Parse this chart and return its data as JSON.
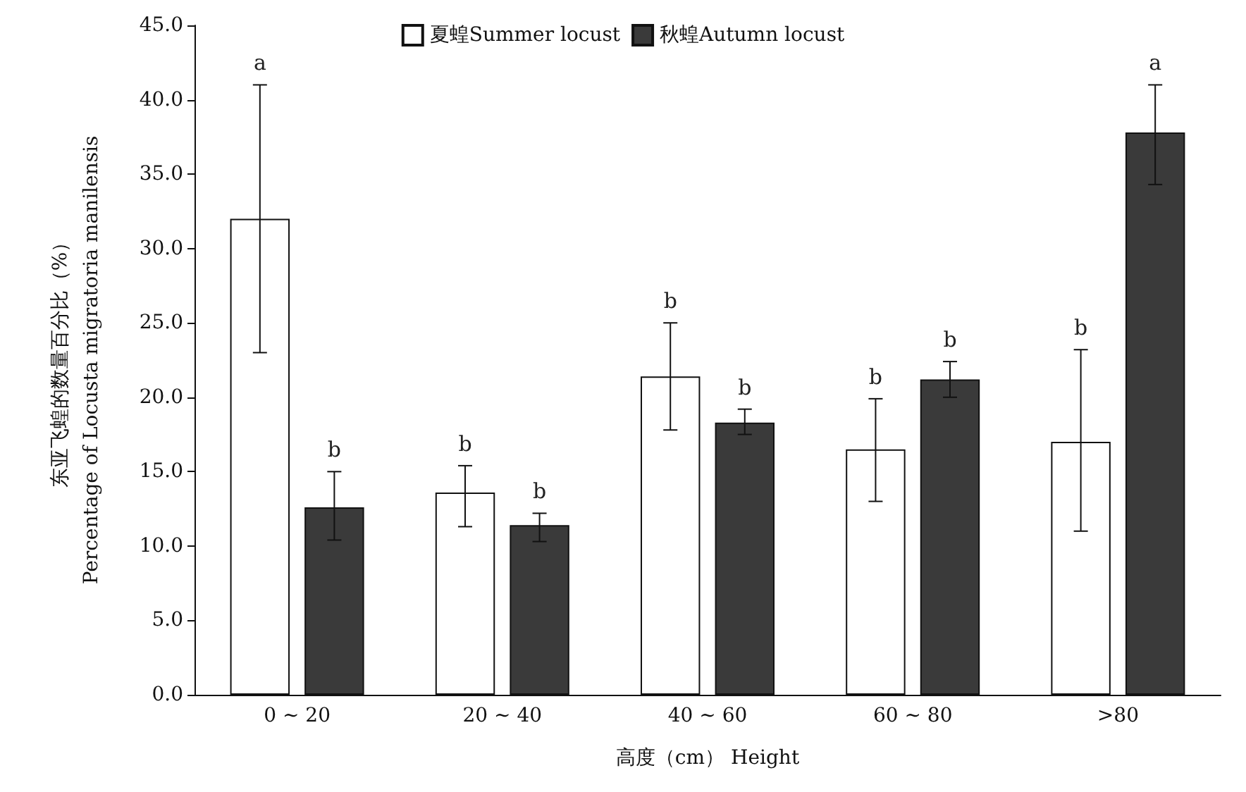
{
  "chart_data": {
    "type": "bar",
    "xlabel": "高度（cm） Height",
    "ylabel": "东亚飞蝗的数量百分比（%）\nPercentage of Locusta migratoria manilensis",
    "categories": [
      "0 ~ 20",
      "20 ~ 40",
      "40 ~ 60",
      "60 ~ 80",
      ">80"
    ],
    "series": [
      {
        "name": "夏蝗Summer locust",
        "color": "#ffffff",
        "values": [
          32.0,
          13.6,
          21.4,
          16.5,
          17.0
        ],
        "errors": [
          [
            23.0,
            41.0
          ],
          [
            11.3,
            15.4
          ],
          [
            17.8,
            25.0
          ],
          [
            13.0,
            19.9
          ],
          [
            11.0,
            23.2
          ]
        ]
      },
      {
        "name": "秋蝗Autumn locust",
        "color": "#3a3a3a",
        "values": [
          12.6,
          11.4,
          18.3,
          21.2,
          37.8
        ],
        "errors": [
          [
            10.4,
            15.0
          ],
          [
            10.3,
            12.2
          ],
          [
            17.5,
            19.2
          ],
          [
            20.0,
            22.4
          ],
          [
            34.3,
            41.0
          ]
        ]
      }
    ],
    "ylim": [
      0,
      45
    ],
    "yticks": [
      {
        "value": 0,
        "label": "0.0"
      },
      {
        "value": 5,
        "label": "5.0"
      },
      {
        "value": 10,
        "label": "10.0"
      },
      {
        "value": 15,
        "label": "15.0"
      },
      {
        "value": 20,
        "label": "20.0"
      },
      {
        "value": 25,
        "label": "25.0"
      },
      {
        "value": 30,
        "label": "30.0"
      },
      {
        "value": 35,
        "label": "35.0"
      },
      {
        "value": 40,
        "label": "40.0"
      },
      {
        "value": 45,
        "label": "45.0"
      }
    ],
    "annotations": [
      "a",
      "b",
      "b",
      "b",
      "b",
      "b",
      "b",
      "b",
      "b",
      "a"
    ],
    "grid": false,
    "legend": "top"
  }
}
